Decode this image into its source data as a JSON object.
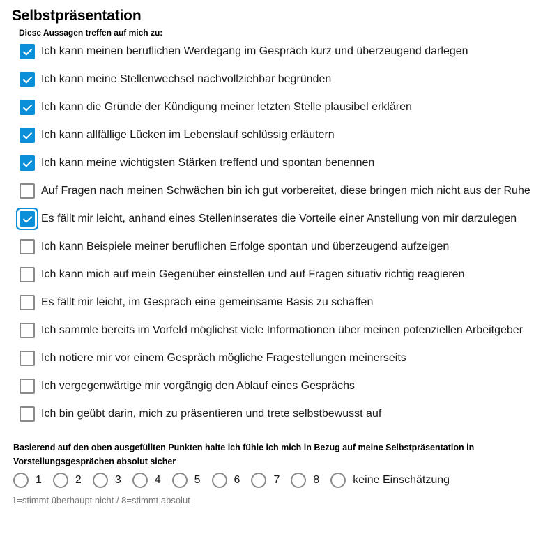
{
  "title": "Selbstpräsentation",
  "subtitle": "Diese Aussagen treffen auf mich zu:",
  "items": [
    {
      "label": "Ich kann meinen beruflichen Werdegang im Gespräch kurz und überzeugend darlegen",
      "checked": true
    },
    {
      "label": "Ich kann meine Stellenwechsel nachvollziehbar begründen",
      "checked": true
    },
    {
      "label": "Ich kann die Gründe der Kündigung meiner letzten Stelle plausibel erklären",
      "checked": true
    },
    {
      "label": "Ich kann allfällige Lücken im Lebenslauf schlüssig erläutern",
      "checked": true
    },
    {
      "label": "Ich kann meine wichtigsten Stärken treffend und spontan benennen",
      "checked": true
    },
    {
      "label": "Auf Fragen nach meinen Schwächen bin ich gut vorbereitet, diese bringen mich nicht aus der Ruhe",
      "checked": false
    },
    {
      "label": "Es fällt mir leicht, anhand eines Stelleninserates die Vorteile einer Anstellung von mir darzulegen",
      "checked": true,
      "focused": true
    },
    {
      "label": "Ich kann Beispiele meiner beruflichen Erfolge spontan und überzeugend aufzeigen",
      "checked": false
    },
    {
      "label": "Ich kann mich auf mein Gegenüber einstellen und auf Fragen situativ richtig reagieren",
      "checked": false
    },
    {
      "label": "Es fällt mir leicht, im Gespräch eine gemeinsame Basis zu schaffen",
      "checked": false
    },
    {
      "label": "Ich sammle bereits im Vorfeld möglichst viele Informationen über meinen potenziellen Arbeitgeber",
      "checked": false
    },
    {
      "label": "Ich notiere mir vor einem Gespräch mögliche Fragestellungen meinerseits",
      "checked": false
    },
    {
      "label": "Ich vergegenwärtige mir vorgängig den Ablauf eines Gesprächs",
      "checked": false
    },
    {
      "label": "Ich bin geübt darin, mich zu präsentieren und trete selbstbewusst auf",
      "checked": false
    }
  ],
  "rating": {
    "question": "Basierend auf den oben ausgefüllten Punkten halte ich fühle ich mich in Bezug auf meine Selbstpräsentation in Vorstellungsgesprächen absolut sicher",
    "options": [
      "1",
      "2",
      "3",
      "4",
      "5",
      "6",
      "7",
      "8",
      "keine Einschätzung"
    ],
    "selected": null,
    "hint": "1=stimmt überhaupt nicht / 8=stimmt absolut"
  },
  "colors": {
    "accent": "#0a8fd8"
  }
}
